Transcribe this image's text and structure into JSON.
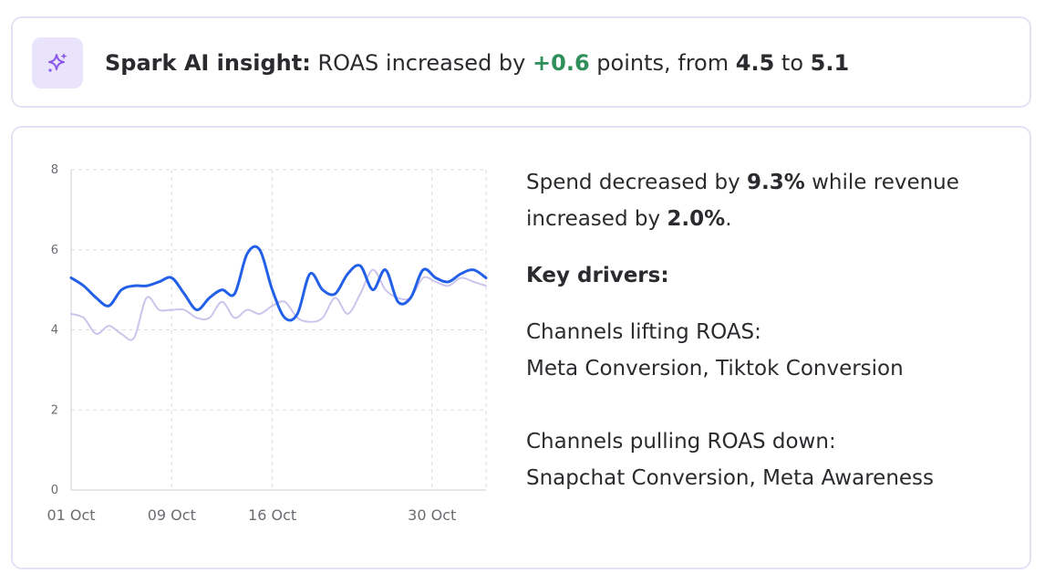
{
  "insight": {
    "title": "Spark AI insight:",
    "text_1": "ROAS increased by",
    "delta": "+0.6",
    "text_2": "points, from",
    "from": "4.5",
    "text_3": "to",
    "to": "5.1",
    "icon": "sparkle-icon",
    "positive_color": "#2f8f5b"
  },
  "summary": {
    "line_1a": "Spend decreased by",
    "spend_change": "9.3%",
    "line_1b": "while revenue increased by",
    "revenue_change": "2.0%",
    "line_1c": ".",
    "key_drivers": "Key drivers:",
    "lifting_label": "Channels lifting ROAS:",
    "lifting_channels": "Meta Conversion, Tiktok Conversion",
    "pulling_label": "Channels pulling ROAS down:",
    "pulling_channels": "Snapchat Conversion, Meta Awareness"
  },
  "chart_data": {
    "type": "line",
    "title": "",
    "xlabel": "",
    "ylabel": "",
    "ylim": [
      0,
      8
    ],
    "yticks": [
      0,
      2,
      4,
      6,
      8
    ],
    "xlim": [
      1,
      34
    ],
    "xticks": [
      {
        "day": 1,
        "label": "01 Oct"
      },
      {
        "day": 9,
        "label": "09 Oct"
      },
      {
        "day": 17,
        "label": "16 Oct"
      },
      {
        "day": 29.7,
        "label": "30 Oct"
      }
    ],
    "grid": true,
    "legend": "none",
    "series": [
      {
        "color": "#ccc4ec",
        "x": [
          1,
          2,
          3,
          4,
          5,
          6,
          7,
          8,
          9,
          10,
          11,
          12,
          13,
          14,
          15,
          16,
          17,
          18,
          19,
          20,
          21,
          22,
          23,
          24,
          25,
          26,
          27,
          28,
          29,
          30,
          31,
          32,
          33,
          34
        ],
        "values": [
          4.4,
          4.3,
          3.9,
          4.1,
          3.9,
          3.8,
          4.8,
          4.5,
          4.5,
          4.5,
          4.3,
          4.3,
          4.7,
          4.3,
          4.5,
          4.4,
          4.6,
          4.7,
          4.3,
          4.2,
          4.3,
          4.8,
          4.4,
          4.9,
          5.5,
          5.0,
          4.8,
          4.8,
          5.3,
          5.2,
          5.1,
          5.3,
          5.2,
          5.1
        ]
      },
      {
        "color": "#2360e8",
        "x": [
          1,
          2,
          3,
          4,
          5,
          6,
          7,
          8,
          9,
          10,
          11,
          12,
          13,
          14,
          15,
          16,
          17,
          18,
          19,
          20,
          21,
          22,
          23,
          24,
          25,
          26,
          27,
          28,
          29,
          30,
          31,
          32,
          33,
          34
        ],
        "values": [
          5.3,
          5.1,
          4.8,
          4.6,
          5.0,
          5.1,
          5.1,
          5.2,
          5.3,
          4.9,
          4.5,
          4.8,
          5.0,
          4.9,
          5.9,
          6.0,
          5.0,
          4.3,
          4.4,
          5.4,
          5.0,
          4.9,
          5.4,
          5.6,
          5.0,
          5.5,
          4.7,
          4.8,
          5.5,
          5.3,
          5.2,
          5.4,
          5.5,
          5.3
        ]
      }
    ]
  }
}
